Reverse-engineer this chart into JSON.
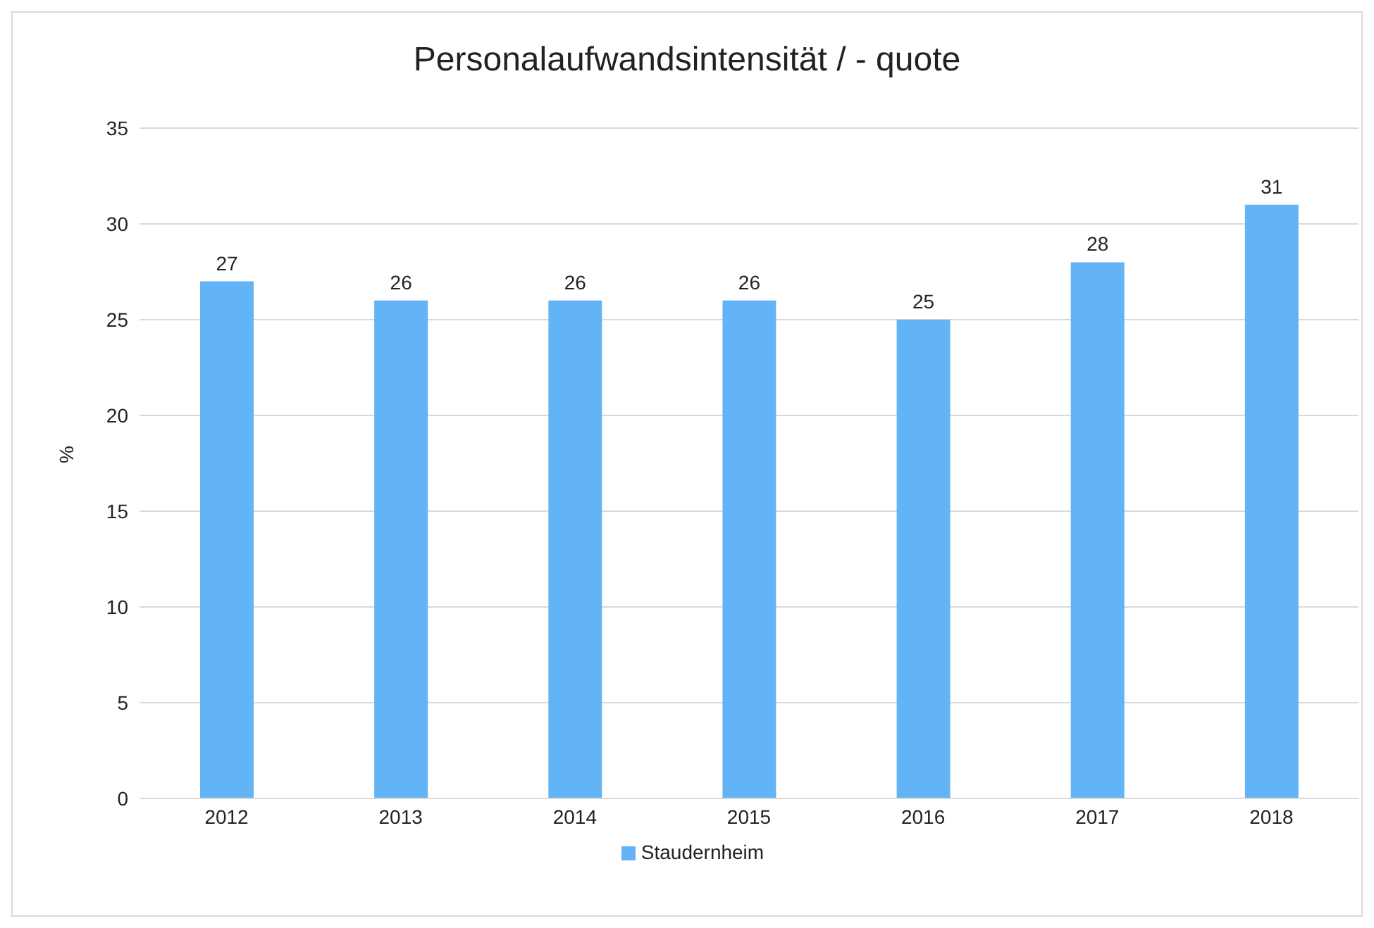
{
  "chart_data": {
    "type": "bar",
    "title": "Personalaufwandsintensität / - quote",
    "ylabel": "%",
    "categories": [
      "2012",
      "2013",
      "2014",
      "2015",
      "2016",
      "2017",
      "2018"
    ],
    "series": [
      {
        "name": "Staudernheim",
        "color": "#63b4f6",
        "values": [
          27,
          26,
          26,
          26,
          25,
          28,
          31
        ]
      }
    ],
    "ylim": [
      0,
      35
    ],
    "yticks": [
      0,
      5,
      10,
      15,
      20,
      25,
      30,
      35
    ],
    "grid": "y",
    "legend": "bottom",
    "data_labels": true
  }
}
